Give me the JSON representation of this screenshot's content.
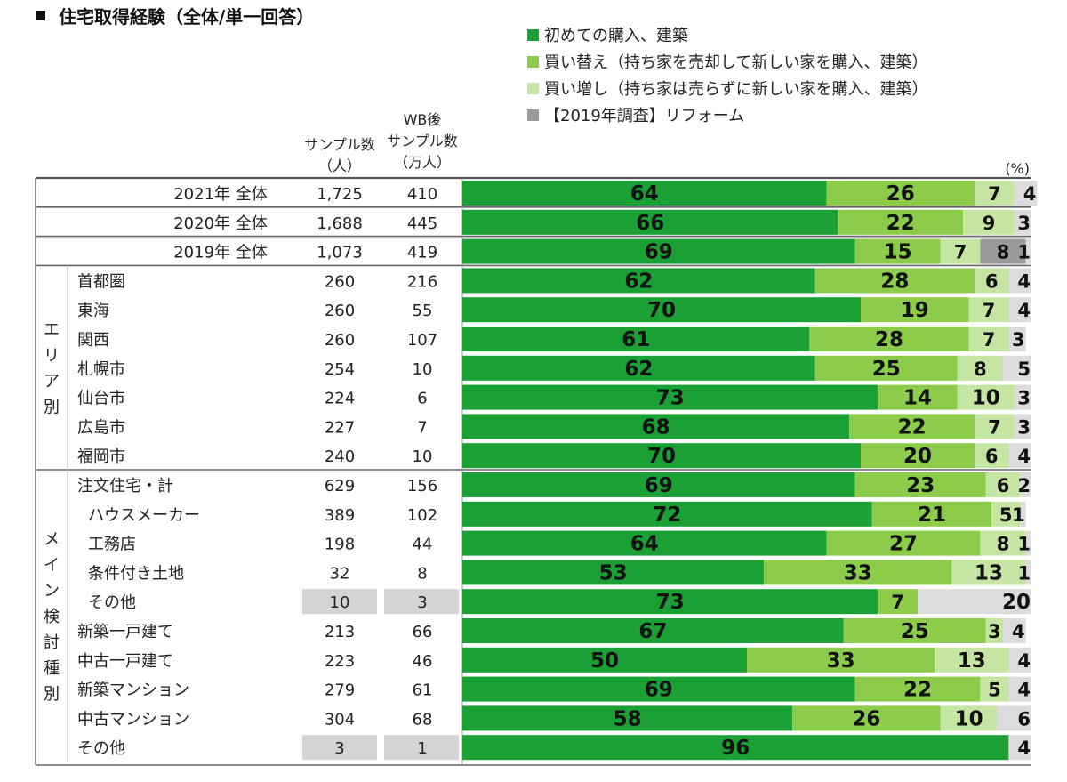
{
  "colors": {
    "first": "#1aa035",
    "replace": "#8dcc4a",
    "add": "#c5e6a2",
    "reform": "#9a9a9a",
    "other": "#dcdcdc",
    "small_sample": "#d4d4d4"
  },
  "chart_data": {
    "type": "bar",
    "orientation": "horizontal",
    "stacked": true,
    "title": "住宅取得経験（全体/単一回答）",
    "unit": "(%)",
    "columns": {
      "sample": "サンプル数\n（人）",
      "wb": "WB後\nサンプル数\n（万人）"
    },
    "legend": [
      {
        "key": "first",
        "label": "初めての購入、建築"
      },
      {
        "key": "replace",
        "label": "買い替え（持ち家を売却して新しい家を購入、建築）"
      },
      {
        "key": "add",
        "label": "買い増し（持ち家は売らずに新しい家を購入、建築）"
      },
      {
        "key": "reform",
        "label": "【2019年調査】リフォーム"
      }
    ],
    "groups": [
      {
        "label": "エリア別",
        "from": 3,
        "to": 9
      },
      {
        "label": "メイン検討種別",
        "from": 10,
        "to": 19
      }
    ],
    "rows": [
      {
        "label": "2021年 全体",
        "sample": "1,725",
        "wb": "410",
        "values": [
          64,
          26,
          7,
          0,
          4
        ]
      },
      {
        "label": "2020年 全体",
        "sample": "1,688",
        "wb": "445",
        "values": [
          66,
          22,
          9,
          0,
          3
        ]
      },
      {
        "label": "2019年 全体",
        "sample": "1,073",
        "wb": "419",
        "values": [
          69,
          15,
          7,
          8,
          1
        ]
      },
      {
        "label": "首都圏",
        "sample": "260",
        "wb": "216",
        "values": [
          62,
          28,
          6,
          0,
          4
        ]
      },
      {
        "label": "東海",
        "sample": "260",
        "wb": "55",
        "values": [
          70,
          19,
          7,
          0,
          4
        ]
      },
      {
        "label": "関西",
        "sample": "260",
        "wb": "107",
        "values": [
          61,
          28,
          7,
          0,
          3
        ]
      },
      {
        "label": "札幌市",
        "sample": "254",
        "wb": "10",
        "values": [
          62,
          25,
          8,
          0,
          5
        ]
      },
      {
        "label": "仙台市",
        "sample": "224",
        "wb": "6",
        "values": [
          73,
          14,
          10,
          0,
          3
        ]
      },
      {
        "label": "広島市",
        "sample": "227",
        "wb": "7",
        "values": [
          68,
          22,
          7,
          0,
          3
        ]
      },
      {
        "label": "福岡市",
        "sample": "240",
        "wb": "10",
        "values": [
          70,
          20,
          6,
          0,
          4
        ]
      },
      {
        "label": "注文住宅・計",
        "sample": "629",
        "wb": "156",
        "values": [
          69,
          23,
          6,
          0,
          2
        ]
      },
      {
        "label": "ハウスメーカー",
        "sample": "389",
        "wb": "102",
        "values": [
          72,
          21,
          5,
          0,
          1
        ]
      },
      {
        "label": "工務店",
        "sample": "198",
        "wb": "44",
        "values": [
          64,
          27,
          8,
          0,
          1
        ]
      },
      {
        "label": "条件付き土地",
        "sample": "32",
        "wb": "8",
        "values": [
          53,
          33,
          13,
          0,
          1
        ]
      },
      {
        "label": "その他",
        "sample": "10",
        "wb": "3",
        "values": [
          73,
          7,
          0,
          0,
          20
        ],
        "small": true
      },
      {
        "label": "新築一戸建て",
        "sample": "213",
        "wb": "66",
        "values": [
          67,
          25,
          3,
          0,
          4
        ]
      },
      {
        "label": "中古一戸建て",
        "sample": "223",
        "wb": "46",
        "values": [
          50,
          33,
          13,
          0,
          4
        ]
      },
      {
        "label": "新築マンション",
        "sample": "279",
        "wb": "61",
        "values": [
          69,
          22,
          5,
          0,
          4
        ]
      },
      {
        "label": "中古マンション",
        "sample": "304",
        "wb": "68",
        "values": [
          58,
          26,
          10,
          0,
          6
        ]
      },
      {
        "label": "その他",
        "sample": "3",
        "wb": "1",
        "values": [
          96,
          0,
          0,
          0,
          4
        ],
        "small": true
      }
    ]
  }
}
